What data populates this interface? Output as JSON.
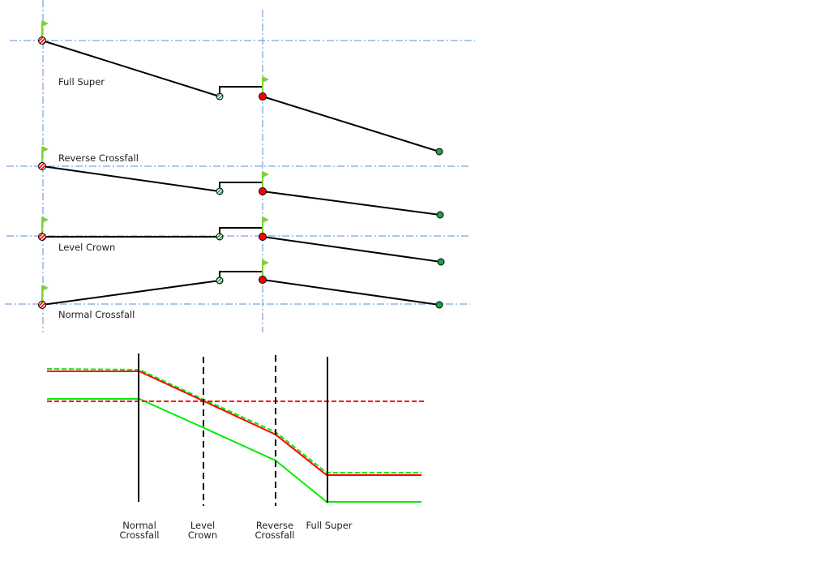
{
  "sections": [
    {
      "label": "Full Super"
    },
    {
      "label": "Reverse Crossfall"
    },
    {
      "label": "Level Crown"
    },
    {
      "label": "Normal Crossfall"
    }
  ],
  "transition_labels": {
    "normal_crossfall": [
      "Normal",
      "Crossfall"
    ],
    "level_crown": [
      "Level",
      "Crown"
    ],
    "reverse_crossfall": [
      "Reverse",
      "Crossfall"
    ],
    "full_super": "Full Super"
  },
  "colors": {
    "axis": "#5b8fd0",
    "profile": "#000000",
    "red": "#ff0000",
    "green": "#00ee00",
    "node_green": "#1aa34a",
    "flag": "#7fd13b"
  }
}
